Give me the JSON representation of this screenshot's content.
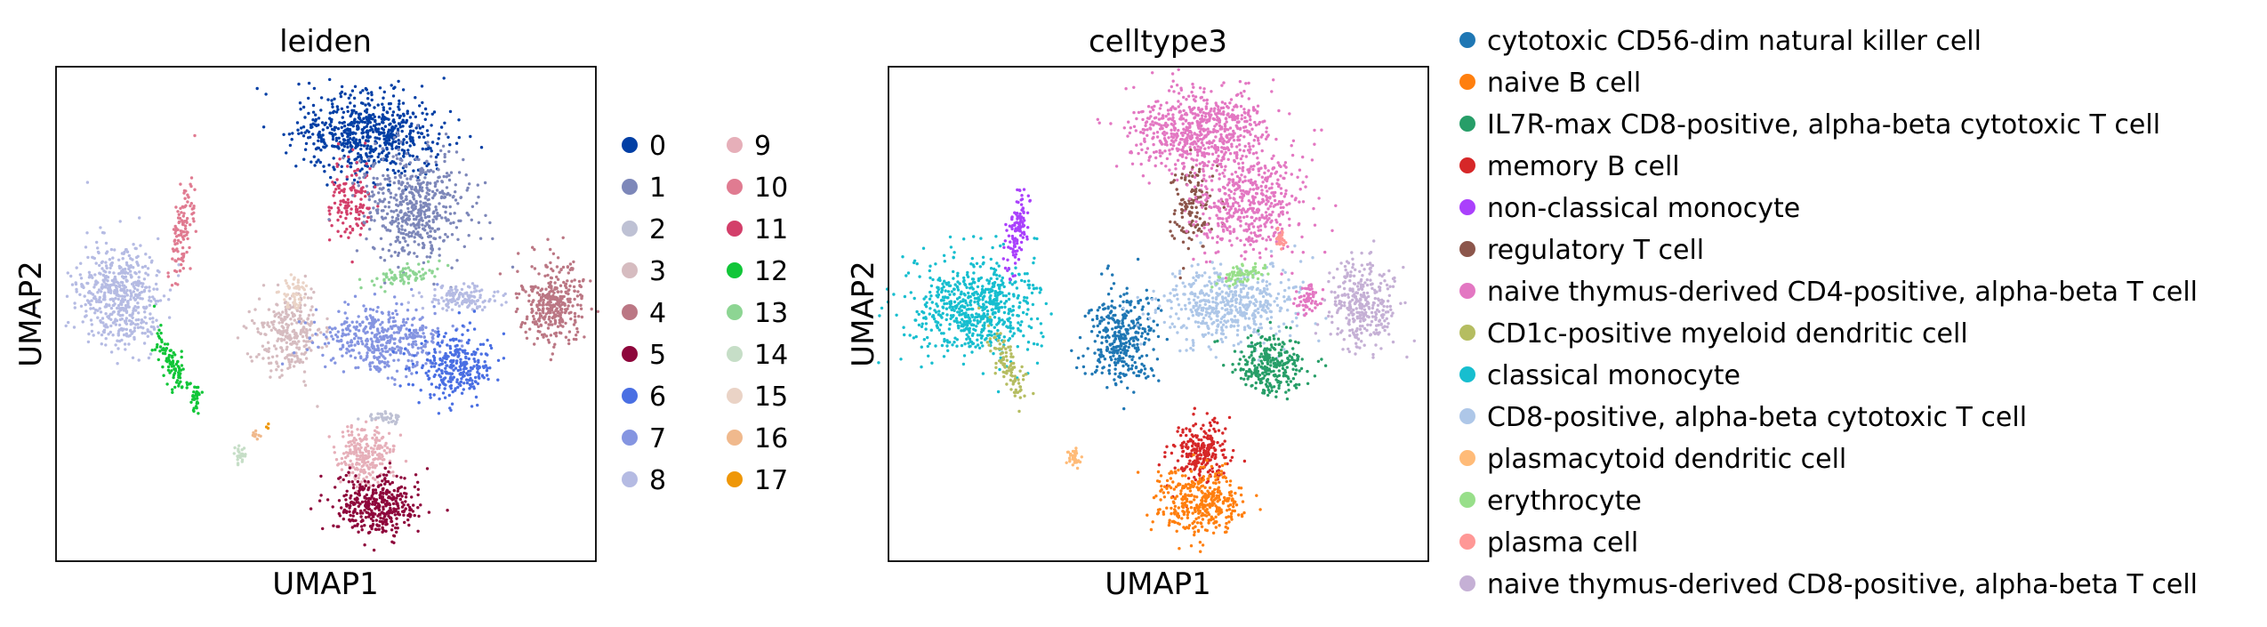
{
  "chart_data": [
    {
      "type": "scatter",
      "title": "leiden",
      "xlabel": "UMAP1",
      "ylabel": "UMAP2",
      "grid": false,
      "xticks": "none",
      "yticks": "none",
      "legend_position": "right",
      "legend_columns": 2,
      "series": [
        {
          "name": "0",
          "color": "#023fa5"
        },
        {
          "name": "1",
          "color": "#7d87b9"
        },
        {
          "name": "2",
          "color": "#bec1d4"
        },
        {
          "name": "3",
          "color": "#d6bcc0"
        },
        {
          "name": "4",
          "color": "#bb7784"
        },
        {
          "name": "5",
          "color": "#8e063b"
        },
        {
          "name": "6",
          "color": "#4a6fe3"
        },
        {
          "name": "7",
          "color": "#8595e1"
        },
        {
          "name": "8",
          "color": "#b5bbe3"
        },
        {
          "name": "9",
          "color": "#e6afb9"
        },
        {
          "name": "10",
          "color": "#e07b91"
        },
        {
          "name": "11",
          "color": "#d33f6a"
        },
        {
          "name": "12",
          "color": "#11c638"
        },
        {
          "name": "13",
          "color": "#8dd593"
        },
        {
          "name": "14",
          "color": "#c6dec7"
        },
        {
          "name": "15",
          "color": "#ead3c6"
        },
        {
          "name": "16",
          "color": "#f0b98d"
        },
        {
          "name": "17",
          "color": "#ef9708"
        }
      ]
    },
    {
      "type": "scatter",
      "title": "celltype3",
      "xlabel": "UMAP1",
      "ylabel": "UMAP2",
      "grid": false,
      "xticks": "none",
      "yticks": "none",
      "legend_position": "right",
      "legend_columns": 1,
      "series": [
        {
          "name": "cytotoxic CD56-dim natural killer cell",
          "color": "#1f77b4"
        },
        {
          "name": "naive B cell",
          "color": "#ff7f0e"
        },
        {
          "name": "IL7R-max CD8-positive, alpha-beta cytotoxic T cell",
          "color": "#279e68"
        },
        {
          "name": "memory B cell",
          "color": "#d62728"
        },
        {
          "name": "non-classical monocyte",
          "color": "#aa40fc"
        },
        {
          "name": "regulatory T cell",
          "color": "#8c564b"
        },
        {
          "name": "naive thymus-derived CD4-positive, alpha-beta T cell",
          "color": "#e377c2"
        },
        {
          "name": "CD1c-positive myeloid dendritic cell",
          "color": "#b5bd61"
        },
        {
          "name": "classical monocyte",
          "color": "#17becf"
        },
        {
          "name": "CD8-positive, alpha-beta cytotoxic T cell",
          "color": "#aec7e8"
        },
        {
          "name": "plasmacytoid dendritic cell",
          "color": "#ffbb78"
        },
        {
          "name": "erythrocyte",
          "color": "#98df8a"
        },
        {
          "name": "plasma cell",
          "color": "#ff9896"
        },
        {
          "name": "naive thymus-derived CD8-positive, alpha-beta T cell",
          "color": "#c5b0d5"
        }
      ]
    }
  ]
}
